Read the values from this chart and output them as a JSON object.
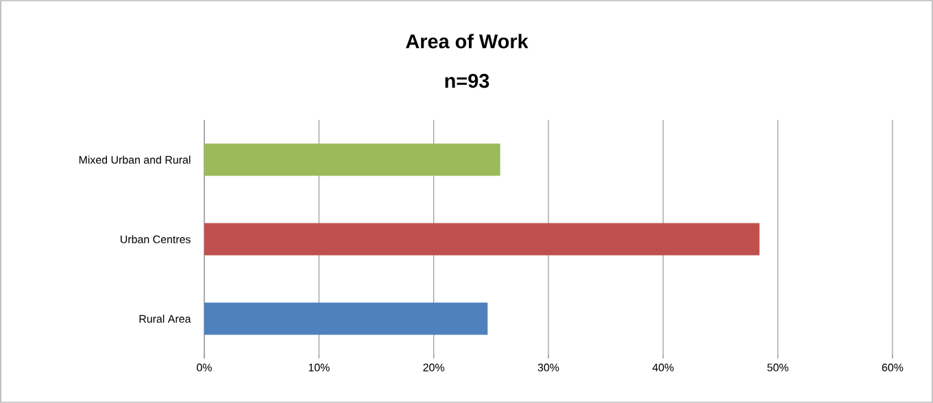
{
  "chart_data": {
    "type": "bar",
    "orientation": "horizontal",
    "title": "Area of Work",
    "subtitle": "n=93",
    "categories": [
      "Mixed Urban and Rural",
      "Urban Centres",
      "Rural Area"
    ],
    "values": [
      25.8,
      48.4,
      24.7
    ],
    "colors": [
      "#9bbb59",
      "#c0504d",
      "#4f81bd"
    ],
    "xlim": [
      0,
      60
    ],
    "xticks": [
      {
        "value": 0,
        "label": "0%"
      },
      {
        "value": 10,
        "label": "10%"
      },
      {
        "value": 20,
        "label": "20%"
      },
      {
        "value": 30,
        "label": "30%"
      },
      {
        "value": 40,
        "label": "40%"
      },
      {
        "value": 50,
        "label": "50%"
      },
      {
        "value": 60,
        "label": "60%"
      }
    ],
    "grid": "x"
  }
}
